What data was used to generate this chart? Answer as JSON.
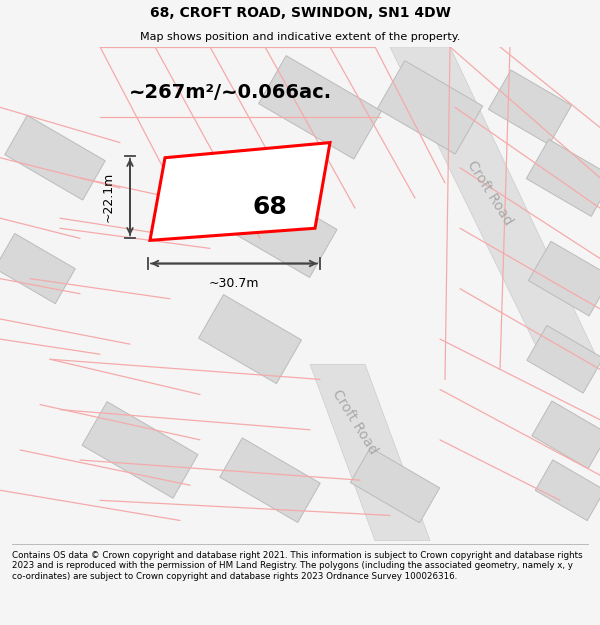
{
  "title_line1": "68, CROFT ROAD, SWINDON, SN1 4DW",
  "title_line2": "Map shows position and indicative extent of the property.",
  "footer_text": "Contains OS data © Crown copyright and database right 2021. This information is subject to Crown copyright and database rights 2023 and is reproduced with the permission of HM Land Registry. The polygons (including the associated geometry, namely x, y co-ordinates) are subject to Crown copyright and database rights 2023 Ordnance Survey 100026316.",
  "bg_color": "#f5f5f5",
  "map_bg_color": "#ffffff",
  "area_label": "~267m²/~0.066ac.",
  "plot_number": "68",
  "width_label": "~30.7m",
  "height_label": "~22.1m",
  "road_label_upper": "Croft Road",
  "road_label_lower": "Croft Road",
  "plot_color": "#ff0000",
  "block_color": "#d8d8d8",
  "block_edge_color": "#bbbbbb",
  "road_band_color": "#e0e0e0",
  "road_band_edge": "#cccccc",
  "street_line_color": "#f5aaaa",
  "dim_line_color": "#444444",
  "road_text_color": "#aaaaaa",
  "title_fontsize": 10,
  "subtitle_fontsize": 8,
  "area_fontsize": 14,
  "plot_num_fontsize": 18,
  "dim_fontsize": 9,
  "road_fontsize": 10,
  "footer_fontsize": 6.3
}
